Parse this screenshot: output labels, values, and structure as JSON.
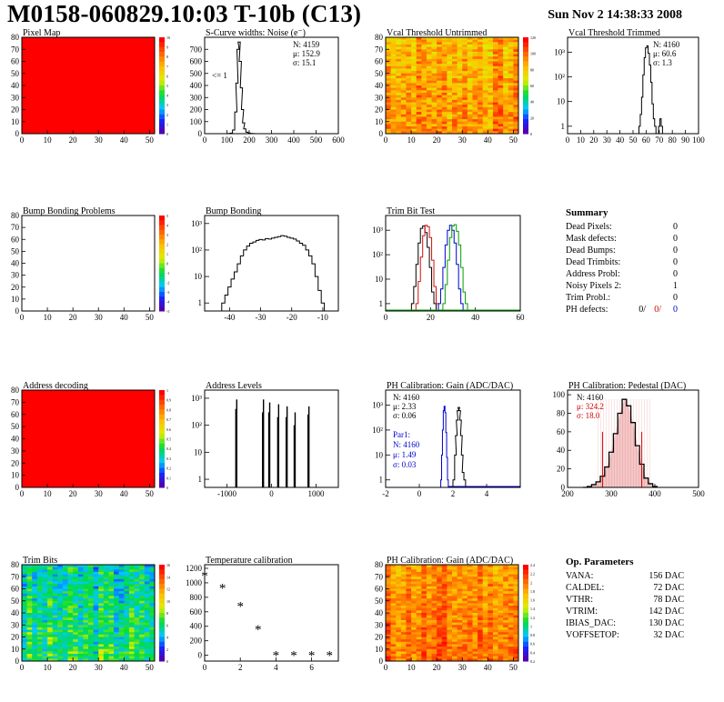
{
  "header": {
    "title": "M0158-060829.10:03 T-10b (C13)",
    "date": "Sun Nov  2 14:38:33 2008"
  },
  "chart_data": [
    {
      "id": "pixel_map",
      "type": "heatmap",
      "title": "Pixel Map",
      "xlim": [
        0,
        52
      ],
      "ylim": [
        0,
        80
      ],
      "xticks": [
        0,
        10,
        20,
        30,
        40,
        50
      ],
      "yticks": [
        0,
        10,
        20,
        30,
        40,
        50,
        60,
        70,
        80
      ],
      "fill": "uniform",
      "cell_value": 10,
      "palette_max": 10,
      "palette_ticks": [
        "10",
        "9",
        "8",
        "7",
        "6",
        "5",
        "4",
        "3",
        "2",
        "1",
        "0"
      ]
    },
    {
      "id": "scurve_noise",
      "type": "line",
      "title": "S-Curve widths: Noise (e⁻)",
      "xlim": [
        0,
        600
      ],
      "ylim": [
        0,
        800
      ],
      "xticks": [
        0,
        100,
        200,
        300,
        400,
        500,
        600
      ],
      "yticks": [
        0,
        100,
        200,
        300,
        400,
        500,
        600,
        700
      ],
      "x": [
        100,
        110,
        120,
        130,
        140,
        145,
        150,
        155,
        160,
        165,
        170,
        175,
        180,
        190,
        200,
        210,
        220,
        230
      ],
      "values": [
        0,
        2,
        5,
        30,
        180,
        420,
        700,
        760,
        600,
        380,
        200,
        90,
        40,
        12,
        5,
        2,
        1,
        0
      ],
      "stats": {
        "N": "4159",
        "mu": "152.9",
        "sigma": "15.1"
      },
      "annotation": "<= 1"
    },
    {
      "id": "vcal_untrimmed",
      "type": "heatmap",
      "title": "Vcal Threshold Untrimmed",
      "xlim": [
        0,
        52
      ],
      "ylim": [
        0,
        80
      ],
      "xticks": [
        0,
        10,
        20,
        30,
        40,
        50
      ],
      "yticks": [
        0,
        10,
        20,
        30,
        40,
        50,
        60,
        70,
        80
      ],
      "fill": "noise",
      "seed": 7,
      "center": 0.75,
      "spread": 0.12,
      "palette_max": 120,
      "palette_ticks": [
        "120",
        "100",
        "80",
        "60",
        "40",
        "20",
        "0"
      ]
    },
    {
      "id": "vcal_trimmed",
      "type": "line",
      "title": "Vcal Threshold Trimmed",
      "xlim": [
        0,
        100
      ],
      "ylim": [
        0.5,
        4000
      ],
      "log_y": true,
      "xticks": [
        0,
        10,
        20,
        30,
        40,
        50,
        60,
        70,
        80,
        90,
        100
      ],
      "yticks_log": [
        1,
        10,
        100,
        1000
      ],
      "x": [
        55,
        56,
        57,
        58,
        59,
        60,
        61,
        62,
        63,
        64,
        65,
        66,
        67,
        68,
        69,
        70,
        71,
        72
      ],
      "values": [
        1,
        3,
        15,
        120,
        600,
        1500,
        1800,
        900,
        300,
        60,
        8,
        2,
        1,
        0,
        0,
        1,
        2,
        1
      ],
      "stats": {
        "N": "4160",
        "mu": "60.6",
        "sigma": "1.3"
      }
    },
    {
      "id": "bump_problems",
      "type": "heatmap",
      "title": "Bump Bonding Problems",
      "xlim": [
        0,
        52
      ],
      "ylim": [
        0,
        80
      ],
      "xticks": [
        0,
        10,
        20,
        30,
        40,
        50
      ],
      "yticks": [
        0,
        10,
        20,
        30,
        40,
        50,
        60,
        70,
        80
      ],
      "fill": "empty",
      "palette_max": 5,
      "palette_ticks": [
        "5",
        "4",
        "3",
        "2",
        "1",
        "0",
        "-1",
        "-2",
        "-3",
        "-4",
        "-5"
      ]
    },
    {
      "id": "bump_bonding",
      "type": "line",
      "title": "Bump Bonding",
      "xlim": [
        -48,
        -5
      ],
      "ylim": [
        0.5,
        2000
      ],
      "log_y": true,
      "xticks": [
        -40,
        -30,
        -20,
        -10
      ],
      "yticks_log": [
        1,
        10,
        100,
        1000
      ],
      "x": [
        -42,
        -41,
        -40,
        -39,
        -38,
        -37,
        -36,
        -35,
        -34,
        -33,
        -32,
        -31,
        -30,
        -29,
        -28,
        -27,
        -26,
        -25,
        -24,
        -23,
        -22,
        -21,
        -20,
        -19,
        -18,
        -17,
        -16,
        -15,
        -14,
        -13,
        -12,
        -11,
        -10
      ],
      "values": [
        1,
        2,
        4,
        8,
        15,
        30,
        60,
        100,
        140,
        180,
        200,
        230,
        250,
        240,
        270,
        260,
        280,
        300,
        320,
        350,
        330,
        300,
        280,
        260,
        220,
        180,
        150,
        100,
        60,
        30,
        10,
        3,
        1
      ]
    },
    {
      "id": "trim_bit_test",
      "type": "line",
      "title": "Trim Bit Test",
      "xlim": [
        0,
        60
      ],
      "ylim": [
        0.5,
        4000
      ],
      "log_y": true,
      "xticks": [
        0,
        20,
        40,
        60
      ],
      "yticks_log": [
        1,
        10,
        100,
        1000
      ],
      "series": [
        {
          "color": "#000000",
          "x": [
            12,
            13,
            14,
            15,
            16,
            17,
            18,
            19,
            20,
            21,
            22
          ],
          "values": [
            1,
            5,
            40,
            300,
            1200,
            1500,
            800,
            200,
            30,
            3,
            1
          ]
        },
        {
          "color": "#d01010",
          "x": [
            14,
            15,
            16,
            17,
            18,
            19,
            20,
            21,
            22,
            23
          ],
          "values": [
            1,
            8,
            80,
            600,
            1600,
            1400,
            500,
            60,
            5,
            1
          ]
        },
        {
          "color": "#0000cc",
          "x": [
            24,
            25,
            26,
            27,
            28,
            29,
            30,
            31,
            32,
            33,
            34
          ],
          "values": [
            1,
            4,
            30,
            250,
            1000,
            1600,
            1000,
            300,
            40,
            4,
            1
          ]
        },
        {
          "color": "#00a000",
          "x": [
            26,
            27,
            28,
            29,
            30,
            31,
            32,
            33,
            34,
            35,
            36
          ],
          "values": [
            1,
            6,
            60,
            500,
            1500,
            1700,
            900,
            250,
            30,
            3,
            1
          ]
        }
      ]
    },
    {
      "id": "summary",
      "type": "table",
      "title": "Summary",
      "rows": [
        {
          "label": "Dead Pixels:",
          "value": "0"
        },
        {
          "label": "Mask defects:",
          "value": "0"
        },
        {
          "label": "Dead Bumps:",
          "value": "0"
        },
        {
          "label": "Dead Trimbits:",
          "value": "0"
        },
        {
          "label": "Address Probl:",
          "value": "0"
        },
        {
          "label": "Noisy Pixels 2:",
          "value": "1"
        },
        {
          "label": "Trim Probl.:",
          "value": "0"
        }
      ],
      "ph_defects": {
        "label": "PH defects:",
        "v1": "0/",
        "v2": "0/",
        "v3": "0"
      }
    },
    {
      "id": "address_decoding",
      "type": "heatmap",
      "title": "Address decoding",
      "xlim": [
        0,
        52
      ],
      "ylim": [
        0,
        80
      ],
      "xticks": [
        0,
        10,
        20,
        30,
        40,
        50
      ],
      "yticks": [
        0,
        10,
        20,
        30,
        40,
        50,
        60,
        70,
        80
      ],
      "fill": "uniform",
      "cell_value": 1,
      "palette_max": 1,
      "palette_ticks": [
        "1",
        "0.9",
        "0.8",
        "0.7",
        "0.6",
        "0.5",
        "0.4",
        "0.3",
        "0.2",
        "0.1",
        "0"
      ]
    },
    {
      "id": "address_levels",
      "type": "bar",
      "title": "Address Levels",
      "xlim": [
        -1500,
        1500
      ],
      "ylim": [
        0.5,
        2000
      ],
      "log_y": true,
      "xticks": [
        -1000,
        0,
        1000
      ],
      "yticks_log": [
        1,
        10,
        100,
        1000
      ],
      "x": [
        -800,
        -780,
        -200,
        -180,
        -60,
        -40,
        140,
        160,
        330,
        350,
        510,
        530,
        820,
        840
      ],
      "values": [
        400,
        900,
        300,
        900,
        300,
        700,
        200,
        600,
        200,
        500,
        100,
        300,
        250,
        500
      ]
    },
    {
      "id": "ph_gain",
      "type": "line",
      "title": "PH Calibration: Gain (ADC/DAC)",
      "xlim": [
        -2,
        6
      ],
      "ylim": [
        0.5,
        4000
      ],
      "log_y": true,
      "xticks": [
        -2,
        0,
        2,
        4
      ],
      "yticks_log": [
        1,
        10,
        100,
        1000
      ],
      "series": [
        {
          "name": "Par1:",
          "color": "#0000cc",
          "x": [
            1.3,
            1.35,
            1.4,
            1.45,
            1.5,
            1.55,
            1.6,
            1.65,
            1.7
          ],
          "values": [
            1,
            10,
            100,
            600,
            900,
            500,
            80,
            8,
            1
          ]
        },
        {
          "color": "#000000",
          "x": [
            2.05,
            2.15,
            2.2,
            2.25,
            2.3,
            2.35,
            2.4,
            2.45,
            2.5,
            2.55,
            2.6,
            2.7
          ],
          "values": [
            1,
            10,
            60,
            250,
            600,
            800,
            600,
            250,
            60,
            10,
            2,
            1
          ]
        }
      ],
      "stats": {
        "N": "4160",
        "mu": "2.33",
        "sigma": "0.06"
      },
      "stats2": {
        "N": "4160",
        "mu": "1.49",
        "sigma": "0.03"
      }
    },
    {
      "id": "ph_pedestal",
      "type": "line",
      "title": "PH Calibration: Pedestal (DAC)",
      "xlim": [
        200,
        500
      ],
      "ylim": [
        0,
        105
      ],
      "xticks": [
        200,
        300,
        400,
        500
      ],
      "yticks": [
        0,
        20,
        40,
        60,
        80,
        100
      ],
      "x": [
        240,
        250,
        260,
        270,
        280,
        290,
        300,
        310,
        320,
        330,
        340,
        350,
        360,
        370,
        380,
        390,
        400
      ],
      "values": [
        0,
        1,
        3,
        6,
        12,
        22,
        38,
        58,
        80,
        95,
        88,
        70,
        45,
        25,
        10,
        4,
        1
      ],
      "stats": {
        "N": "4160",
        "mu": "324.2",
        "sigma": "18.0"
      },
      "cut_lines": [
        280,
        370
      ]
    },
    {
      "id": "trim_bits",
      "type": "heatmap",
      "title": "Trim Bits",
      "xlim": [
        0,
        52
      ],
      "ylim": [
        0,
        80
      ],
      "xticks": [
        0,
        10,
        20,
        30,
        40,
        50
      ],
      "yticks": [
        0,
        10,
        20,
        30,
        40,
        50,
        60,
        70,
        80
      ],
      "fill": "noise",
      "seed": 3,
      "center": 0.35,
      "spread": 0.12,
      "palette_max": 16,
      "palette_ticks": [
        "16",
        "14",
        "12",
        "10",
        "8",
        "6",
        "4",
        "2",
        "0"
      ]
    },
    {
      "id": "temp_calibration",
      "type": "scatter",
      "title": "Temperature calibration",
      "xlim": [
        0,
        7.5
      ],
      "ylim": [
        -80,
        1250
      ],
      "xticks": [
        0,
        2,
        4,
        6
      ],
      "yticks": [
        0,
        200,
        400,
        600,
        800,
        1000,
        1200
      ],
      "x": [
        0,
        1,
        2,
        3,
        4,
        5,
        6,
        7
      ],
      "values": [
        1100,
        930,
        680,
        360,
        0,
        0,
        0,
        0
      ],
      "marker": "*"
    },
    {
      "id": "ph_gain_map",
      "type": "heatmap",
      "title": "PH Calibration: Gain (ADC/DAC)",
      "xlim": [
        0,
        52
      ],
      "ylim": [
        0,
        80
      ],
      "xticks": [
        0,
        10,
        20,
        30,
        40,
        50
      ],
      "yticks": [
        0,
        10,
        20,
        30,
        40,
        50,
        60,
        70,
        80
      ],
      "fill": "noise",
      "seed": 11,
      "center": 0.8,
      "spread": 0.1,
      "palette_max": 2.4,
      "palette_ticks": [
        "2.4",
        "2.2",
        "2",
        "1.8",
        "1.6",
        "1.4",
        "1.2",
        "1",
        "0.8",
        "0.6",
        "0.4",
        "0.2"
      ]
    },
    {
      "id": "op_params",
      "type": "table",
      "title": "Op. Parameters",
      "rows": [
        {
          "label": "VANA:",
          "value": "156 DAC"
        },
        {
          "label": "CALDEL:",
          "value": "72 DAC"
        },
        {
          "label": "VTHR:",
          "value": "78 DAC"
        },
        {
          "label": "VTRIM:",
          "value": "142 DAC"
        },
        {
          "label": "IBIAS_DAC:",
          "value": "130 DAC"
        },
        {
          "label": "VOFFSETOP:",
          "value": "32 DAC"
        }
      ]
    }
  ]
}
